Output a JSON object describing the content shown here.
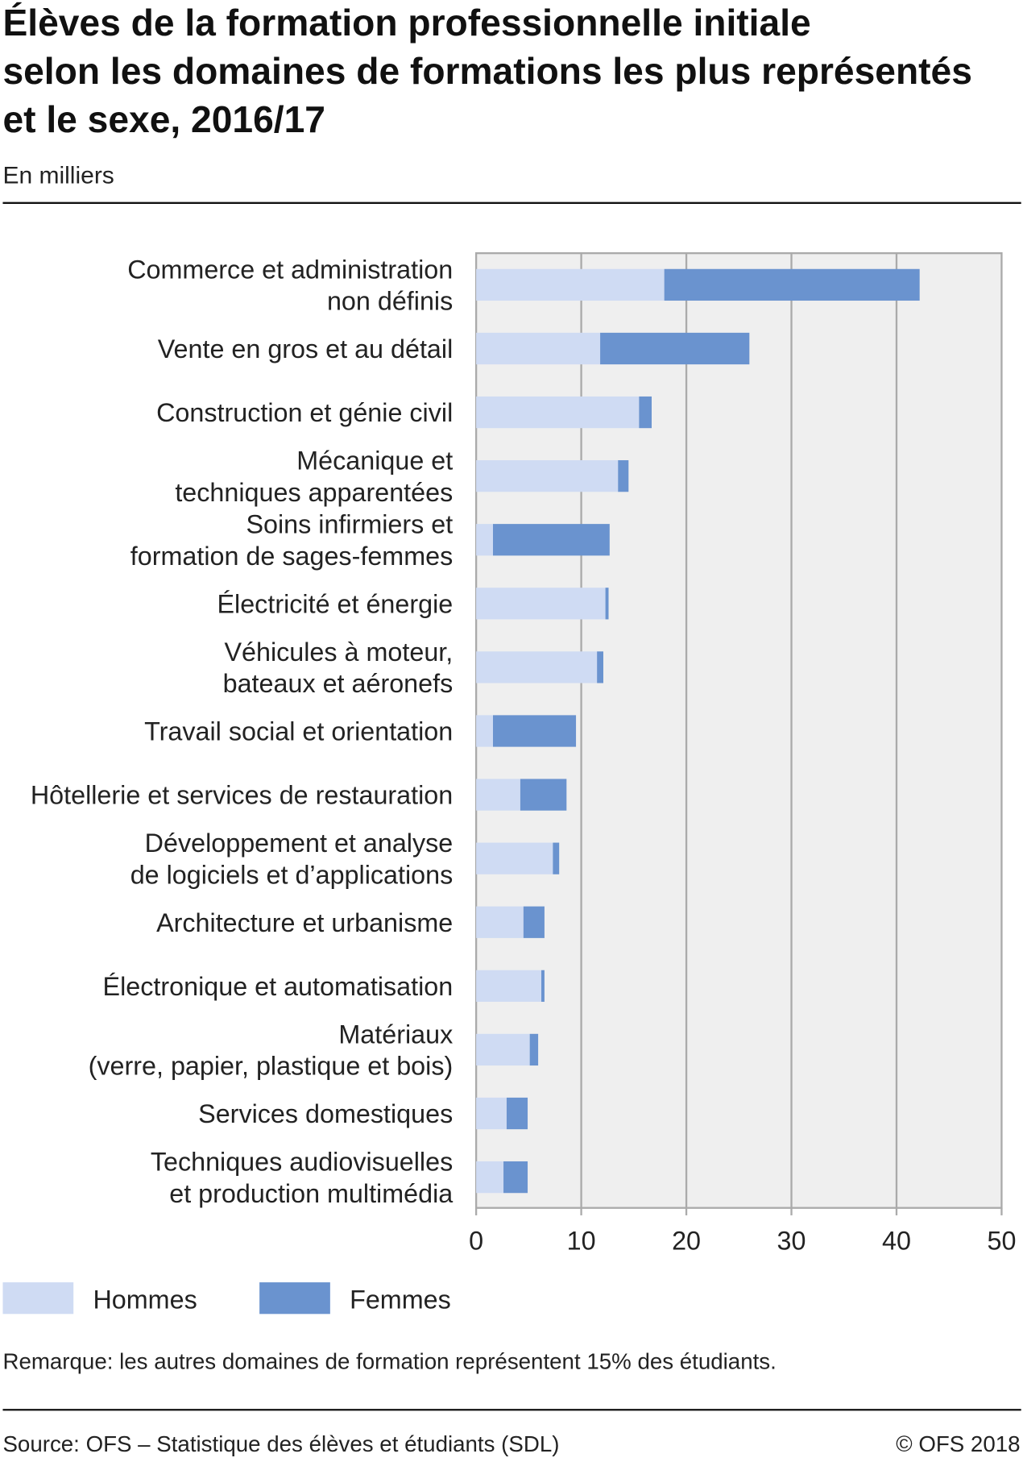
{
  "chart_data": {
    "type": "bar",
    "orientation": "horizontal",
    "stacked": true,
    "title_lines": [
      "Élèves de la formation professionnelle initiale",
      "selon les domaines de formations les plus représentés",
      "et le sexe, 2016/17"
    ],
    "subtitle": "En milliers",
    "categories": [
      [
        "Commerce et administration",
        "non définis"
      ],
      [
        "Vente en gros et au détail"
      ],
      [
        "Construction et génie civil"
      ],
      [
        "Mécanique et",
        "techniques apparentées"
      ],
      [
        "Soins infirmiers et",
        "formation de sages-femmes"
      ],
      [
        "Électricité et énergie"
      ],
      [
        "Véhicules à moteur,",
        "bateaux et aéronefs"
      ],
      [
        "Travail social et orientation"
      ],
      [
        "Hôtellerie et services de restauration"
      ],
      [
        "Développement et analyse",
        "de logiciels et d’applications"
      ],
      [
        "Architecture et urbanisme"
      ],
      [
        "Électronique et automatisation"
      ],
      [
        "Matériaux",
        "(verre, papier, plastique et bois)"
      ],
      [
        "Services domestiques"
      ],
      [
        "Techniques audiovisuelles",
        "et production multimédia"
      ]
    ],
    "series": [
      {
        "name": "Hommes",
        "color": "#cfdbf3",
        "values": [
          17.9,
          11.8,
          15.5,
          13.5,
          1.6,
          12.3,
          11.5,
          1.6,
          4.2,
          7.3,
          4.5,
          6.2,
          5.1,
          2.9,
          2.6
        ]
      },
      {
        "name": "Femmes",
        "color": "#6a93cf",
        "values": [
          24.3,
          14.2,
          1.2,
          1.0,
          11.1,
          0.3,
          0.6,
          7.9,
          4.4,
          0.6,
          2.0,
          0.3,
          0.8,
          2.0,
          2.3
        ]
      }
    ],
    "xlim": [
      0,
      50
    ],
    "xticks": [
      "0",
      "10",
      "20",
      "30",
      "40",
      "50"
    ],
    "grid": true,
    "legend_position": "bottom-left",
    "note": "Remarque: les autres domaines de formation représentent 15% des étudiants.",
    "source": "Source: OFS – Statistique des élèves et étudiants (SDL)",
    "copyright": "© OFS 2018"
  }
}
